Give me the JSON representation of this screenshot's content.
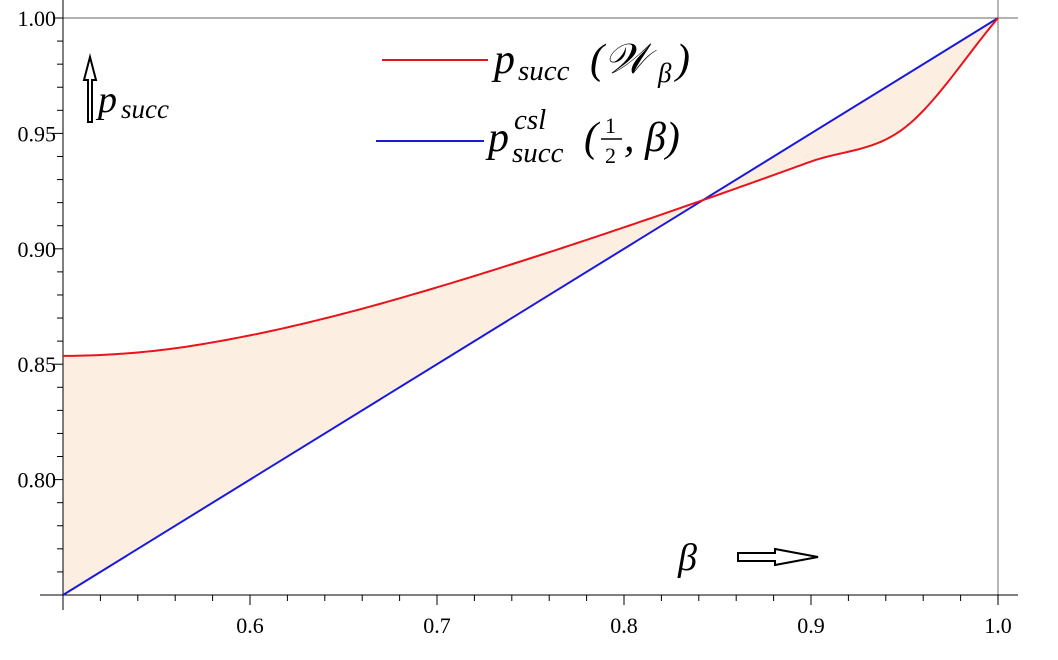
{
  "chart_data": {
    "type": "area",
    "xlim": [
      0.5,
      1.0
    ],
    "ylim": [
      0.75,
      1.0
    ],
    "x_ticks": [
      0.6,
      0.7,
      0.8,
      0.9,
      1.0
    ],
    "x_tick_labels": [
      "0.6",
      "0.7",
      "0.8",
      "0.9",
      "1.0"
    ],
    "y_ticks": [
      0.8,
      0.85,
      0.9,
      0.95,
      1.0
    ],
    "y_tick_labels": [
      "0.80",
      "0.85",
      "0.90",
      "0.95",
      "1.00"
    ],
    "xlabel": "β",
    "ylabel": "p",
    "ylabel_sub": "succ",
    "grid": false,
    "legend_placement": "top-center",
    "series": [
      {
        "name": "p_succ(W_β)",
        "color": "#e8141c",
        "x": [
          0.5,
          0.55,
          0.6,
          0.65,
          0.7,
          0.75,
          0.8,
          0.85,
          0.9,
          0.95,
          1.0
        ],
        "y": [
          0.8536,
          0.8559,
          0.8625,
          0.8719,
          0.8833,
          0.8959,
          0.9093,
          0.9233,
          0.9378,
          0.9524,
          1.0
        ]
      },
      {
        "name": "p_succ^csl(1/2, β)",
        "color": "#1a1adb",
        "x": [
          0.5,
          1.0
        ],
        "y": [
          0.75,
          1.0
        ]
      }
    ],
    "fill_between": {
      "color": "#fdeee2",
      "series": [
        0,
        1
      ]
    },
    "legend": [
      {
        "base": "p",
        "sub": "succ",
        "arg": "(𝒲",
        "arg_sub": "β",
        "close": ")"
      },
      {
        "base": "p",
        "sub": "succ",
        "sup": "csl",
        "arg_open": "(",
        "frac_num": "1",
        "frac_den": "2",
        "arg_rest": ", β)"
      }
    ]
  }
}
